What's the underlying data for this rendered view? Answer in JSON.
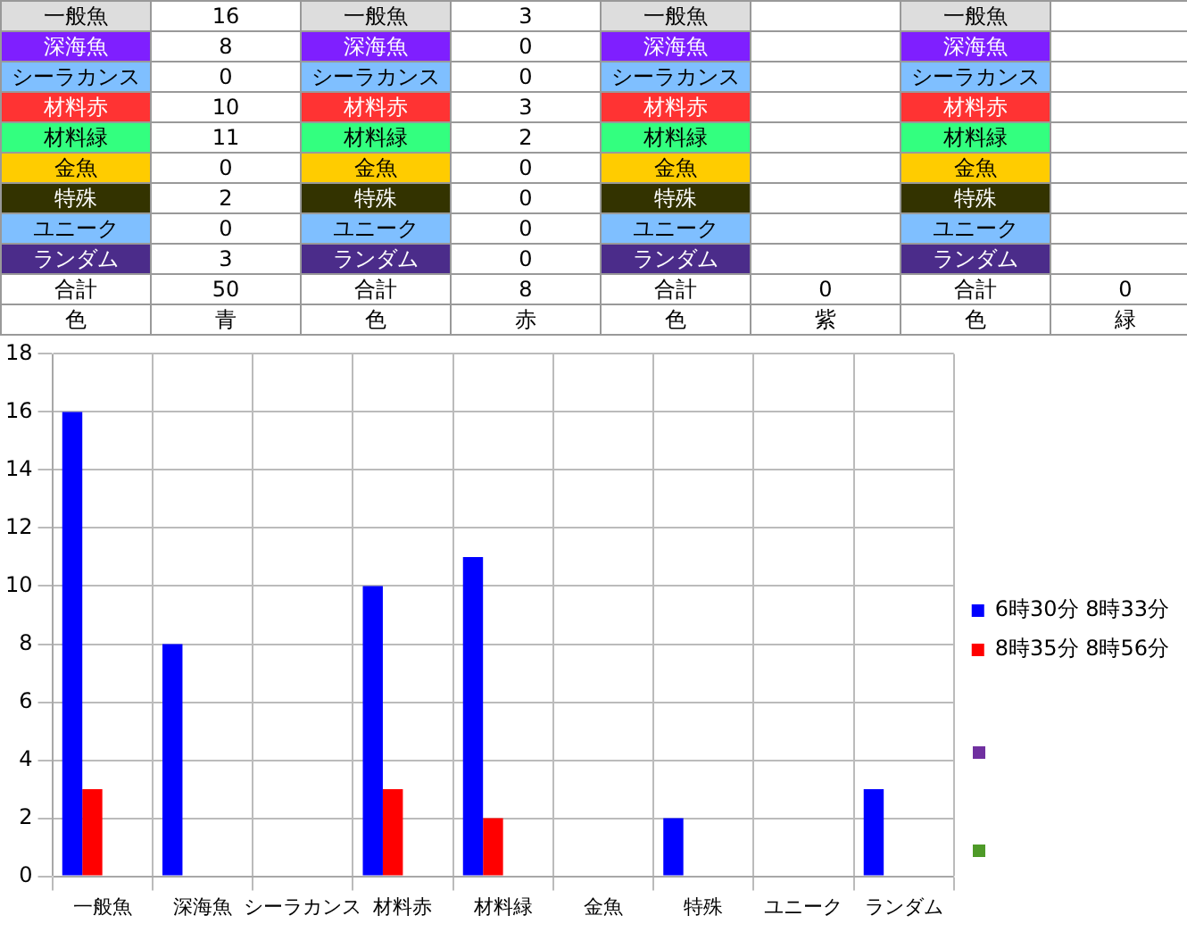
{
  "chart_data": {
    "type": "bar",
    "categories": [
      "一般魚",
      "深海魚",
      "シーラカンス",
      "材料赤",
      "材料緑",
      "金魚",
      "特殊",
      "ユニーク",
      "ランダム"
    ],
    "series": [
      {
        "name": "6時30分 8時33分",
        "color": "#0000ff",
        "values": [
          16,
          8,
          0,
          10,
          11,
          0,
          2,
          0,
          3
        ]
      },
      {
        "name": "8時35分 8時56分",
        "color": "#ff0000",
        "values": [
          3,
          0,
          0,
          3,
          2,
          0,
          0,
          0,
          0
        ]
      },
      {
        "color": "#7030a0",
        "values": [
          null,
          null,
          null,
          null,
          null,
          null,
          null,
          null,
          null
        ]
      },
      {
        "color": "#4e9a28",
        "values": [
          null,
          null,
          null,
          null,
          null,
          null,
          null,
          null,
          null
        ]
      }
    ],
    "ylim": [
      0,
      18
    ],
    "yticks": [
      0,
      2,
      4,
      6,
      8,
      10,
      12,
      14,
      16,
      18
    ],
    "grid": true,
    "legend": "right",
    "annotations": [
      "合計",
      "色",
      "16",
      "8",
      "0",
      "10",
      "11",
      "0",
      "2",
      "0",
      "3",
      "50",
      "青",
      "3",
      "0",
      "0",
      "3",
      "2",
      "0",
      "0",
      "0",
      "0",
      "8",
      "赤",
      "0",
      "紫",
      "0",
      "緑"
    ]
  }
}
